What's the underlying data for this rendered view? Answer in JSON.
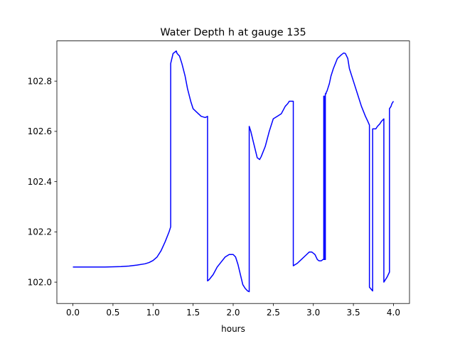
{
  "chart_data": {
    "type": "line",
    "title": "Water Depth h at gauge 135",
    "xlabel": "hours",
    "ylabel": "",
    "xlim": [
      -0.2,
      4.2
    ],
    "ylim": [
      101.915,
      102.96
    ],
    "xticks": [
      0.0,
      0.5,
      1.0,
      1.5,
      2.0,
      2.5,
      3.0,
      3.5,
      4.0
    ],
    "xtick_labels": [
      "0.0",
      "0.5",
      "1.0",
      "1.5",
      "2.0",
      "2.5",
      "3.0",
      "3.5",
      "4.0"
    ],
    "yticks": [
      102.0,
      102.2,
      102.4,
      102.6,
      102.8
    ],
    "ytick_labels": [
      "102.0",
      "102.2",
      "102.4",
      "102.6",
      "102.8"
    ],
    "grid": false,
    "line_color": "#0000ff",
    "series": [
      {
        "x": [
          0.0,
          0.2,
          0.4,
          0.6,
          0.7,
          0.8,
          0.9,
          0.95,
          1.0,
          1.05,
          1.1,
          1.15,
          1.2,
          1.22,
          1.22,
          1.25,
          1.29,
          1.3,
          1.33,
          1.36,
          1.4,
          1.43,
          1.47,
          1.5,
          1.55,
          1.6,
          1.65,
          1.67,
          1.68,
          1.68,
          1.7,
          1.75,
          1.8,
          1.85,
          1.9,
          1.95,
          2.0,
          2.03,
          2.06,
          2.09,
          2.12,
          2.15,
          2.18,
          2.2,
          2.2,
          2.22,
          2.25,
          2.3,
          2.33,
          2.35,
          2.4,
          2.45,
          2.5,
          2.55,
          2.6,
          2.65,
          2.68,
          2.69,
          2.7,
          2.72,
          2.75,
          2.75,
          2.8,
          2.85,
          2.9,
          2.95,
          2.98,
          3.0,
          3.02,
          3.05,
          3.07,
          3.1,
          3.12,
          3.13,
          3.13,
          3.14,
          3.14,
          3.15,
          3.15,
          3.16,
          3.16,
          3.17,
          3.18,
          3.2,
          3.22,
          3.25,
          3.3,
          3.35,
          3.38,
          3.4,
          3.43,
          3.45,
          3.5,
          3.55,
          3.6,
          3.65,
          3.68,
          3.7,
          3.7,
          3.74,
          3.74,
          3.76,
          3.78,
          3.8,
          3.83,
          3.85,
          3.88,
          3.88,
          3.92,
          3.95,
          3.95,
          3.97,
          3.98,
          4.0
        ],
        "y": [
          102.06,
          102.06,
          102.06,
          102.062,
          102.064,
          102.068,
          102.073,
          102.078,
          102.086,
          102.1,
          102.125,
          102.16,
          102.2,
          102.22,
          102.87,
          102.91,
          102.92,
          102.91,
          102.9,
          102.87,
          102.82,
          102.77,
          102.72,
          102.69,
          102.675,
          102.66,
          102.655,
          102.658,
          102.66,
          102.005,
          102.01,
          102.03,
          102.06,
          102.08,
          102.1,
          102.11,
          102.11,
          102.1,
          102.07,
          102.03,
          101.99,
          101.975,
          101.965,
          101.962,
          102.62,
          102.6,
          102.56,
          102.495,
          102.488,
          102.5,
          102.54,
          102.6,
          102.65,
          102.66,
          102.67,
          102.7,
          102.71,
          102.715,
          102.72,
          102.72,
          102.72,
          102.065,
          102.075,
          102.09,
          102.105,
          102.12,
          102.12,
          102.115,
          102.11,
          102.09,
          102.085,
          102.085,
          102.09,
          102.09,
          102.74,
          102.74,
          102.09,
          102.09,
          102.75,
          102.75,
          102.755,
          102.76,
          102.77,
          102.79,
          102.82,
          102.85,
          102.89,
          102.905,
          102.912,
          102.91,
          102.89,
          102.85,
          102.8,
          102.75,
          102.7,
          102.66,
          102.64,
          102.625,
          101.98,
          101.965,
          102.61,
          102.61,
          102.61,
          102.62,
          102.63,
          102.64,
          102.65,
          102.0,
          102.02,
          102.04,
          102.69,
          102.7,
          102.71,
          102.72
        ]
      }
    ]
  }
}
